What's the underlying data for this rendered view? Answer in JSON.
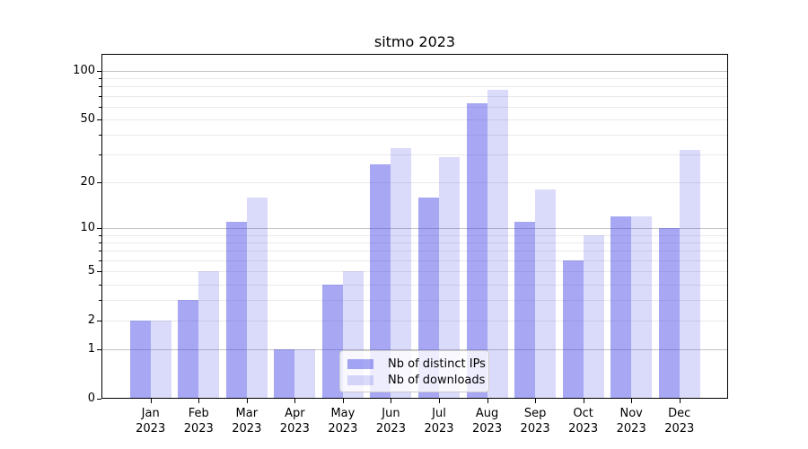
{
  "title": "sitmo 2023",
  "chart_data": {
    "type": "bar",
    "title": "sitmo 2023",
    "yscale": "log1p",
    "ylim": [
      0,
      127
    ],
    "grid": true,
    "legend_position": "lower center",
    "yticks_labeled": [
      0,
      1,
      2,
      5,
      10,
      20,
      50,
      100
    ],
    "yticks_minor": [
      3,
      4,
      6,
      7,
      8,
      9,
      30,
      40,
      60,
      70,
      80,
      90
    ],
    "major_gridlines": [
      1,
      10,
      100
    ],
    "categories": [
      "Jan 2023",
      "Feb 2023",
      "Mar 2023",
      "Apr 2023",
      "May 2023",
      "Jun 2023",
      "Jul 2023",
      "Aug 2023",
      "Sep 2023",
      "Oct 2023",
      "Nov 2023",
      "Dec 2023"
    ],
    "series": [
      {
        "name": "Nb of distinct IPs",
        "base_color": "#3c3ce6",
        "alpha": 0.45,
        "values": [
          2,
          3,
          11,
          1,
          4,
          26,
          16,
          63,
          11,
          6,
          12,
          10
        ]
      },
      {
        "name": "Nb of downloads",
        "base_color": "#3c3ce6",
        "alpha": 0.19,
        "values": [
          2,
          5,
          16,
          1,
          5,
          33,
          29,
          76,
          18,
          9,
          12,
          32
        ]
      }
    ],
    "colors": {
      "major_grid": "#c3c3c3",
      "minor_grid": "#e9e9e9",
      "spine": "#000000",
      "legend_border": "#cccccc"
    }
  }
}
